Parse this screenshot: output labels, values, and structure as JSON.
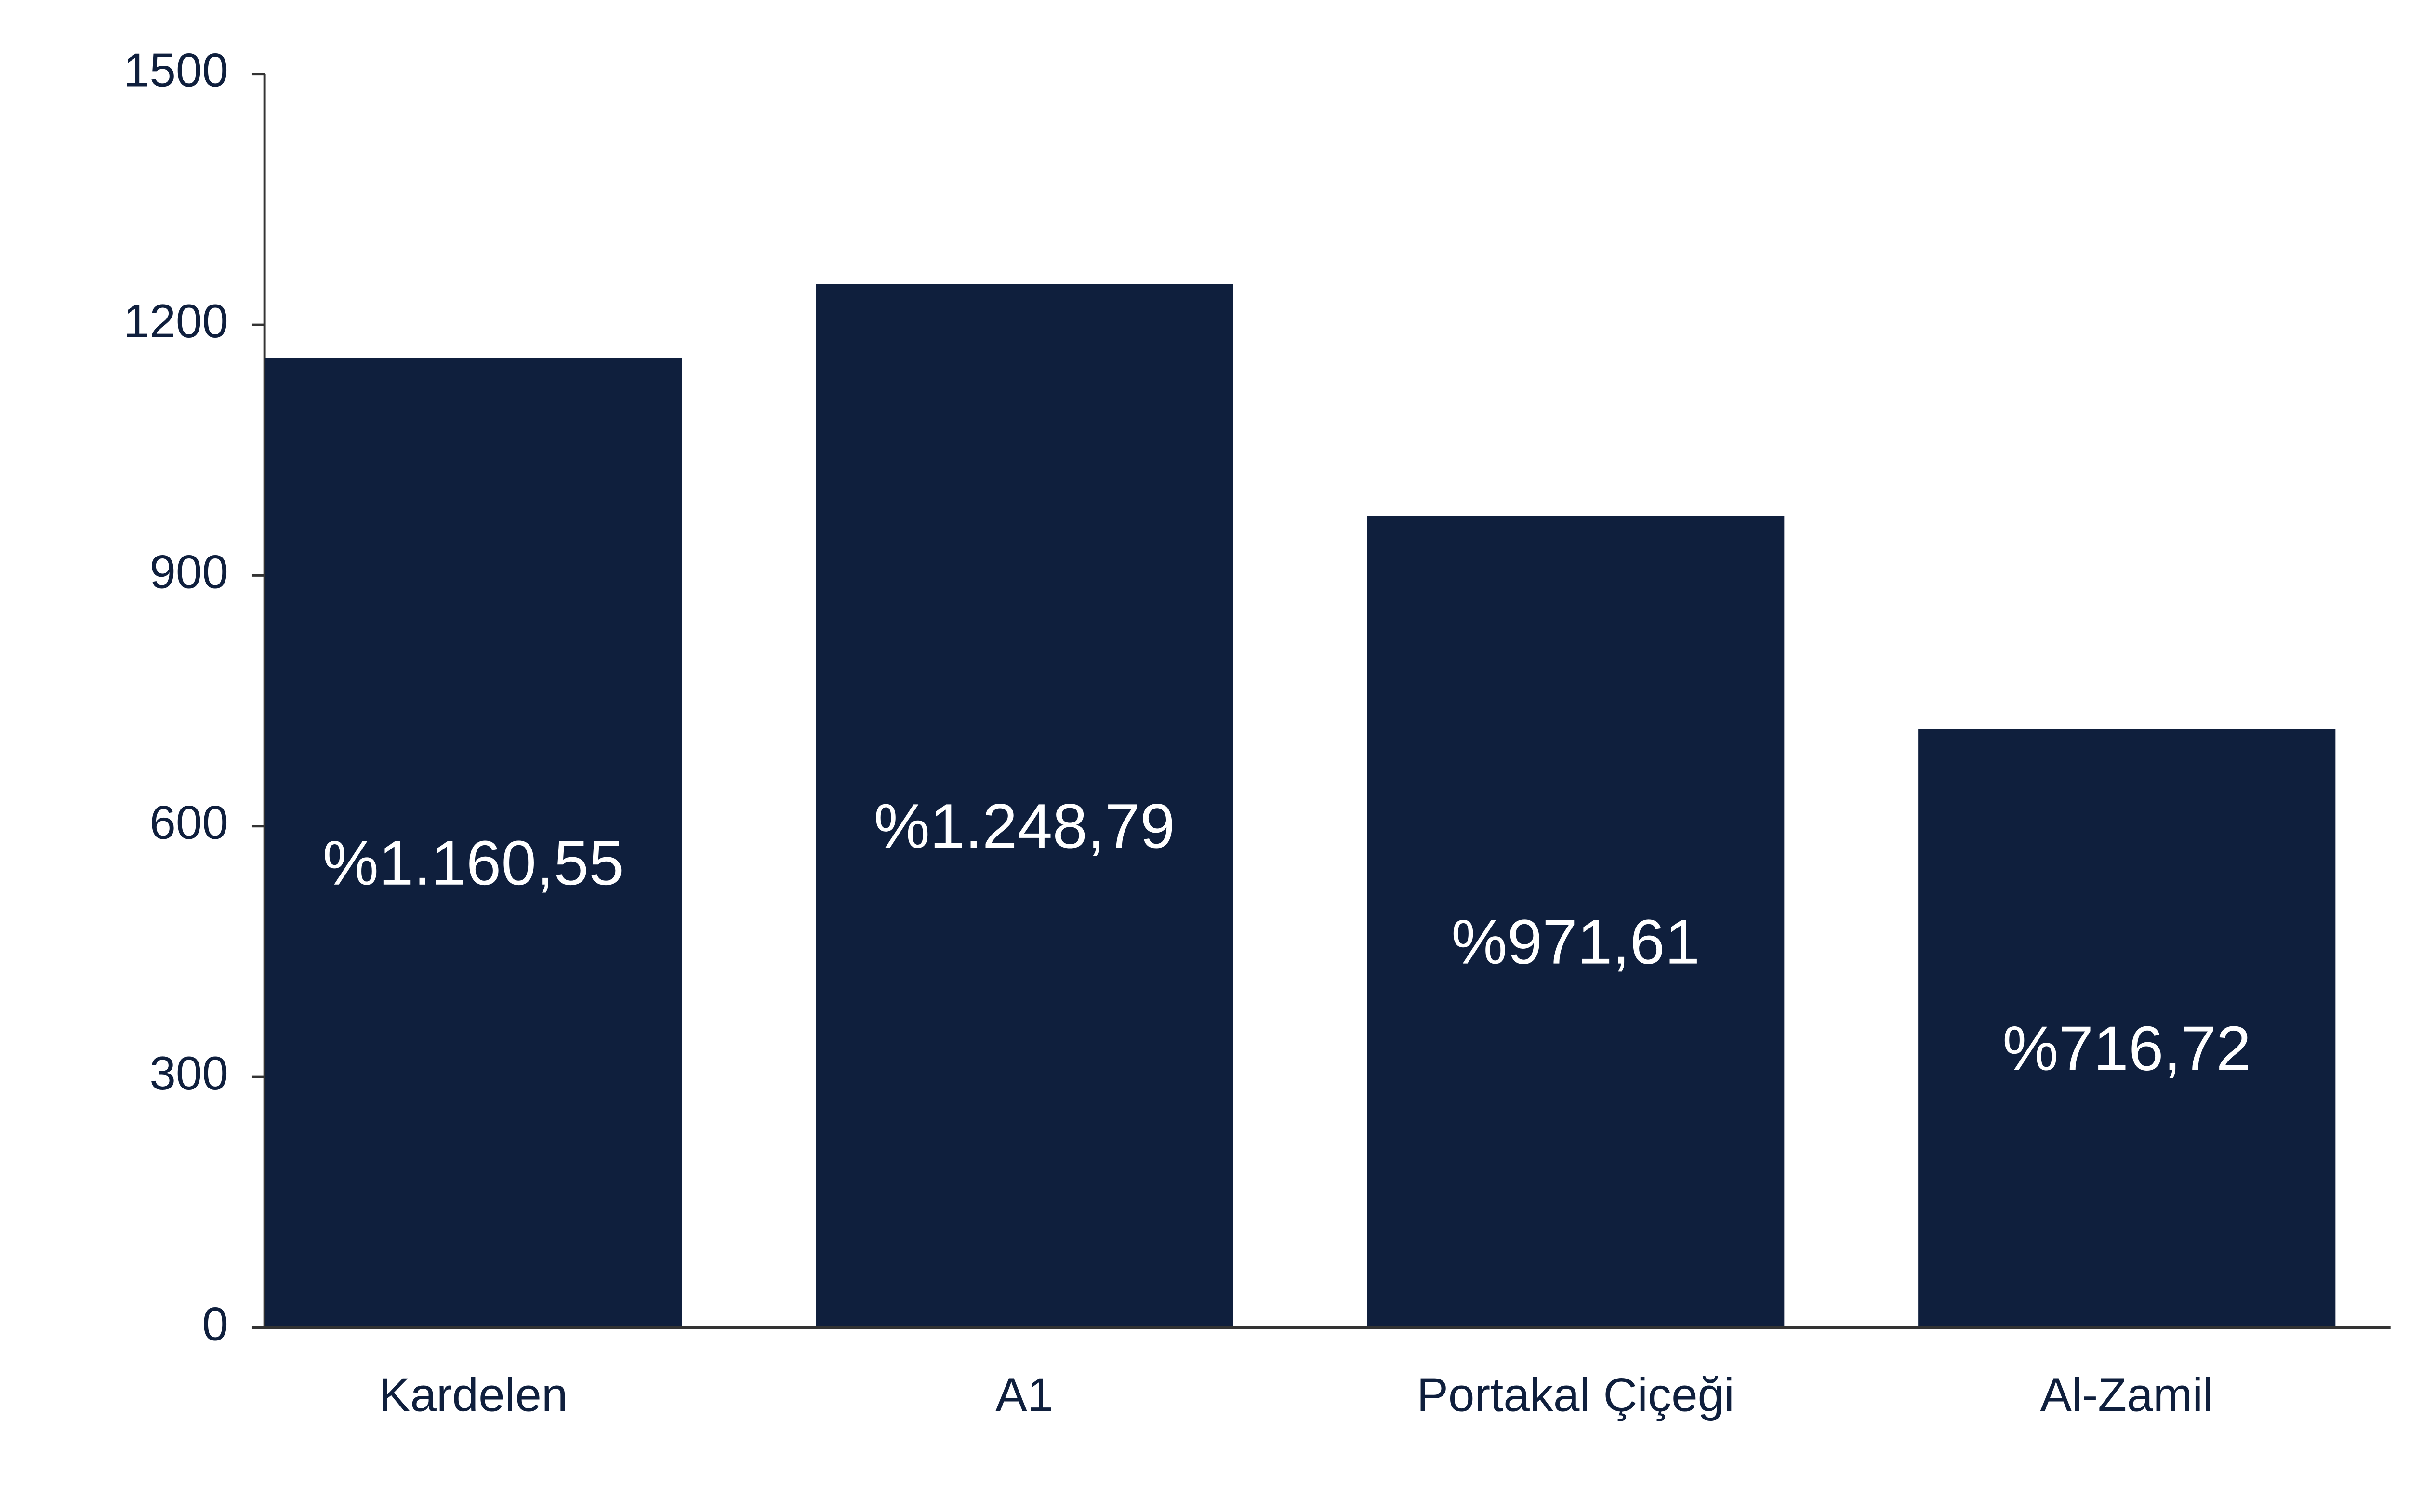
{
  "chart_data": {
    "type": "bar",
    "categories": [
      "Kardelen",
      "A1",
      "Portakal Çiçeği",
      "Al-Zamil"
    ],
    "values": [
      1160.55,
      1248.79,
      971.61,
      716.72
    ],
    "value_labels": [
      "%1.160,55",
      "%1.248,79",
      "%971,61",
      "%716,72"
    ],
    "color": "#0f1f3d",
    "ylim": [
      0,
      1500
    ],
    "yticks": [
      0,
      300,
      600,
      900,
      1200,
      1500
    ]
  }
}
